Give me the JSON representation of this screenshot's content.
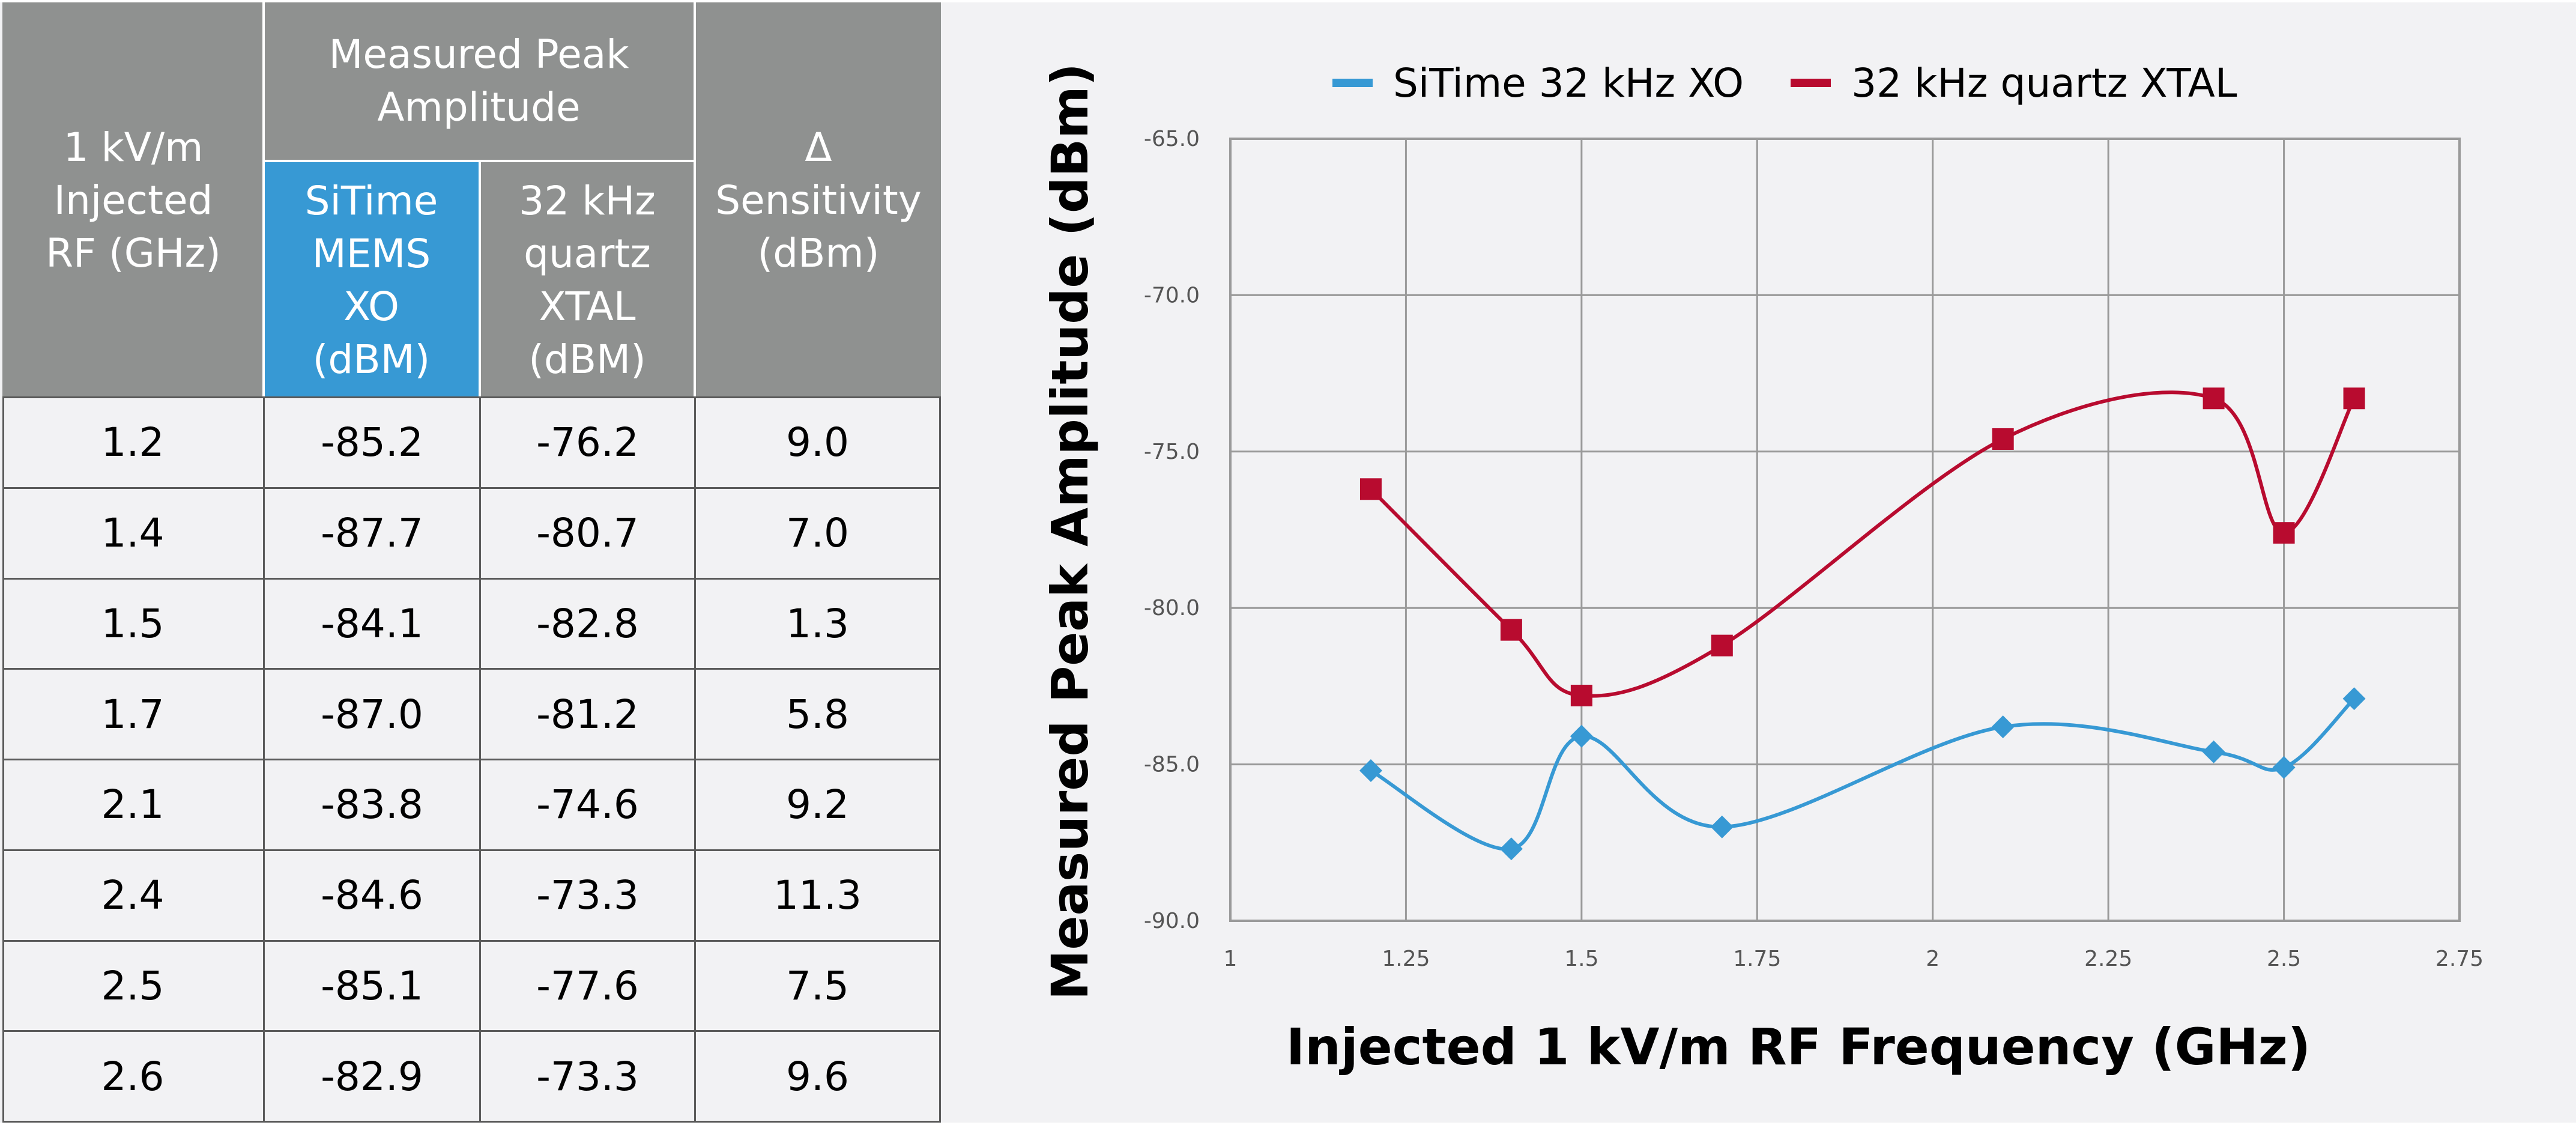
{
  "table": {
    "header": {
      "col1": "1 kV/m\nInjected\nRF (GHz)",
      "group": "Measured Peak\nAmplitude",
      "col2": "SiTime\nMEMS\nXO\n(dBM)",
      "col3": "32 kHz\nquartz\nXTAL\n(dBM)",
      "col4": "Δ\nSensitivity\n(dBm)"
    },
    "rows": [
      {
        "rf": "1.2",
        "sitime": "-85.2",
        "quartz": "-76.2",
        "delta": "9.0"
      },
      {
        "rf": "1.4",
        "sitime": "-87.7",
        "quartz": "-80.7",
        "delta": "7.0"
      },
      {
        "rf": "1.5",
        "sitime": "-84.1",
        "quartz": "-82.8",
        "delta": "1.3"
      },
      {
        "rf": "1.7",
        "sitime": "-87.0",
        "quartz": "-81.2",
        "delta": "5.8"
      },
      {
        "rf": "2.1",
        "sitime": "-83.8",
        "quartz": "-74.6",
        "delta": "9.2"
      },
      {
        "rf": "2.4",
        "sitime": "-84.6",
        "quartz": "-73.3",
        "delta": "11.3"
      },
      {
        "rf": "2.5",
        "sitime": "-85.1",
        "quartz": "-77.6",
        "delta": "7.5"
      },
      {
        "rf": "2.6",
        "sitime": "-82.9",
        "quartz": "-73.3",
        "delta": "9.6"
      }
    ],
    "colors": {
      "header_gray": "#8f9190",
      "header_blue": "#3799d4"
    }
  },
  "chart_data": {
    "type": "line",
    "title": "",
    "xlabel": "Injected 1 kV/m RF Frequency (GHz)",
    "ylabel": "Measured Peak Amplitude (dBm)",
    "xlim": [
      1,
      2.75
    ],
    "ylim": [
      -90,
      -65
    ],
    "xticks": [
      1,
      1.25,
      1.5,
      1.75,
      2,
      2.25,
      2.5,
      2.75
    ],
    "xtick_labels": [
      "1",
      "1.25",
      "1.5",
      "1.75",
      "2",
      "2.25",
      "2.5",
      "2.75"
    ],
    "yticks": [
      -65,
      -70,
      -75,
      -80,
      -85,
      -90
    ],
    "ytick_labels": [
      "-65.0",
      "-70.0",
      "-75.0",
      "-80.0",
      "-85.0",
      "-90.0"
    ],
    "grid": true,
    "legend_position": "top",
    "smooth": true,
    "x": [
      1.2,
      1.4,
      1.5,
      1.7,
      2.1,
      2.4,
      2.5,
      2.6
    ],
    "series": [
      {
        "name": "SiTime 32 kHz XO",
        "color": "#3799d4",
        "marker": "diamond",
        "values": [
          -85.2,
          -87.7,
          -84.1,
          -87.0,
          -83.8,
          -84.6,
          -85.1,
          -82.9
        ]
      },
      {
        "name": "32 kHz quartz XTAL",
        "color": "#b80b2f",
        "marker": "square",
        "values": [
          -76.2,
          -80.7,
          -82.8,
          -81.2,
          -74.6,
          -73.3,
          -77.6,
          -73.3
        ]
      }
    ]
  }
}
